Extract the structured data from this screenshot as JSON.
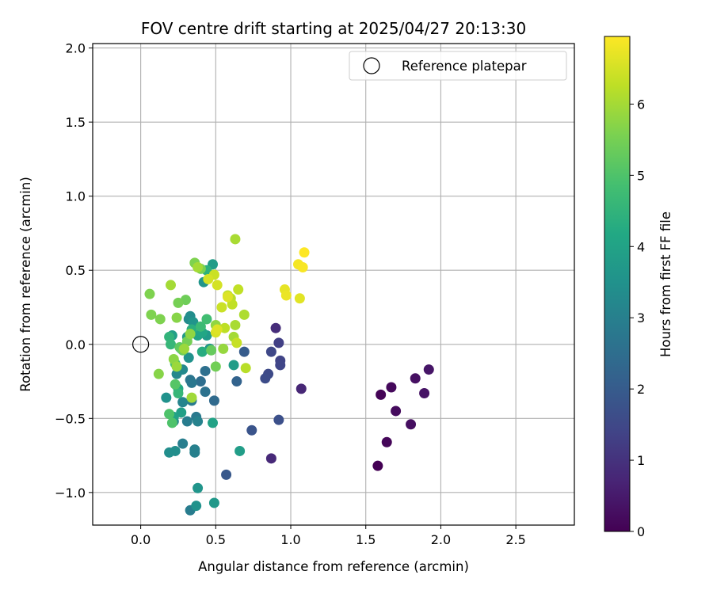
{
  "chart_data": {
    "type": "scatter",
    "title": "FOV centre drift starting at 2025/04/27 20:13:30",
    "xlabel": "Angular distance from reference (arcmin)",
    "ylabel": "Rotation from reference (arcmin)",
    "xlim": [
      -0.32,
      2.89
    ],
    "ylim": [
      -1.22,
      2.03
    ],
    "xticks": [
      "0.0",
      "0.5",
      "1.0",
      "1.5",
      "2.0",
      "2.5"
    ],
    "yticks": [
      "−1.0",
      "−0.5",
      "0.0",
      "0.5",
      "1.0",
      "1.5",
      "2.0"
    ],
    "grid": true,
    "legend": {
      "position": "top-right",
      "entries": [
        "Reference platepar"
      ]
    },
    "reference_point": {
      "x": 0.0,
      "y": 0.0
    },
    "colorbar": {
      "label": "Hours from first FF file",
      "colormap": "viridis",
      "range": [
        0,
        6.95
      ],
      "ticks": [
        "0",
        "1",
        "2",
        "3",
        "4",
        "5",
        "6"
      ]
    },
    "points": [
      [
        1.58,
        -0.82,
        0.0
      ],
      [
        1.6,
        -0.34,
        0.05
      ],
      [
        1.64,
        -0.66,
        0.1
      ],
      [
        1.67,
        -0.29,
        0.15
      ],
      [
        1.7,
        -0.45,
        0.2
      ],
      [
        1.8,
        -0.54,
        0.25
      ],
      [
        1.83,
        -0.23,
        0.3
      ],
      [
        1.89,
        -0.33,
        0.35
      ],
      [
        1.92,
        -0.17,
        0.4
      ],
      [
        1.07,
        -0.3,
        0.75
      ],
      [
        0.87,
        -0.77,
        0.8
      ],
      [
        0.9,
        0.11,
        0.9
      ],
      [
        0.92,
        0.01,
        1.3
      ],
      [
        0.93,
        -0.11,
        1.4
      ],
      [
        0.93,
        -0.14,
        1.45
      ],
      [
        0.87,
        -0.05,
        1.5
      ],
      [
        0.85,
        -0.2,
        1.55
      ],
      [
        0.83,
        -0.23,
        1.6
      ],
      [
        0.92,
        -0.51,
        1.7
      ],
      [
        0.74,
        -0.58,
        1.8
      ],
      [
        0.57,
        -0.88,
        1.9
      ],
      [
        0.69,
        -0.05,
        2.0
      ],
      [
        0.64,
        -0.25,
        2.2
      ],
      [
        0.49,
        -0.38,
        2.4
      ],
      [
        0.4,
        -0.25,
        2.5
      ],
      [
        0.43,
        -0.18,
        2.55
      ],
      [
        0.43,
        -0.32,
        2.6
      ],
      [
        0.33,
        -0.24,
        2.7
      ],
      [
        0.34,
        -0.26,
        2.75
      ],
      [
        0.37,
        -0.49,
        2.8
      ],
      [
        0.34,
        -0.38,
        2.85
      ],
      [
        0.31,
        -0.52,
        2.9
      ],
      [
        0.33,
        -1.12,
        2.9
      ],
      [
        0.28,
        -0.67,
        2.95
      ],
      [
        0.36,
        -0.71,
        3.0
      ],
      [
        0.36,
        -0.73,
        3.0
      ],
      [
        0.38,
        -0.52,
        3.05
      ],
      [
        0.28,
        -0.39,
        3.1
      ],
      [
        0.22,
        -0.52,
        3.15
      ],
      [
        0.24,
        -0.2,
        3.2
      ],
      [
        0.28,
        -0.17,
        3.25
      ],
      [
        0.32,
        0.17,
        3.3
      ],
      [
        0.33,
        0.19,
        3.35
      ],
      [
        0.19,
        -0.73,
        3.4
      ],
      [
        0.23,
        -0.72,
        3.4
      ],
      [
        0.17,
        -0.36,
        3.5
      ],
      [
        0.37,
        -1.09,
        3.5
      ],
      [
        0.32,
        -0.09,
        3.5
      ],
      [
        0.38,
        -0.97,
        3.6
      ],
      [
        0.27,
        -0.03,
        3.6
      ],
      [
        0.35,
        0.15,
        3.6
      ],
      [
        0.42,
        0.42,
        3.6
      ],
      [
        0.49,
        -1.07,
        3.7
      ],
      [
        0.31,
        0.05,
        3.7
      ],
      [
        0.46,
        -0.03,
        3.7
      ],
      [
        0.44,
        0.06,
        3.75
      ],
      [
        0.48,
        0.54,
        3.8
      ],
      [
        0.62,
        -0.14,
        3.8
      ],
      [
        0.66,
        -0.72,
        3.85
      ],
      [
        0.27,
        -0.46,
        3.9
      ],
      [
        0.21,
        0.06,
        3.9
      ],
      [
        0.22,
        -0.49,
        4.0
      ],
      [
        0.48,
        -0.53,
        4.0
      ],
      [
        0.38,
        0.06,
        4.05
      ],
      [
        0.41,
        0.08,
        4.1
      ],
      [
        0.25,
        -0.3,
        4.2
      ],
      [
        0.41,
        -0.05,
        4.3
      ],
      [
        0.34,
        0.1,
        4.35
      ],
      [
        0.44,
        0.5,
        4.4
      ],
      [
        0.19,
        0.05,
        4.5
      ],
      [
        0.25,
        -0.33,
        4.6
      ],
      [
        0.2,
        -0.0,
        4.6
      ],
      [
        0.4,
        0.12,
        4.7
      ],
      [
        0.44,
        0.17,
        4.8
      ],
      [
        0.23,
        -0.13,
        4.9
      ],
      [
        0.19,
        -0.47,
        5.0
      ],
      [
        0.21,
        -0.53,
        5.0
      ],
      [
        0.23,
        -0.27,
        5.1
      ],
      [
        0.26,
        -0.02,
        5.2
      ],
      [
        0.47,
        -0.04,
        5.3
      ],
      [
        0.28,
        -0.04,
        5.4
      ],
      [
        0.3,
        0.3,
        5.4
      ],
      [
        0.5,
        -0.15,
        5.45
      ],
      [
        0.25,
        0.28,
        5.5
      ],
      [
        0.31,
        0.02,
        5.5
      ],
      [
        0.4,
        0.51,
        5.55
      ],
      [
        0.36,
        0.55,
        5.6
      ],
      [
        0.06,
        0.34,
        5.6
      ],
      [
        0.07,
        0.2,
        5.6
      ],
      [
        0.13,
        0.17,
        5.6
      ],
      [
        0.12,
        -0.2,
        5.7
      ],
      [
        0.24,
        0.18,
        5.7
      ],
      [
        0.22,
        -0.1,
        5.75
      ],
      [
        0.33,
        0.07,
        5.8
      ],
      [
        0.5,
        0.13,
        5.8
      ],
      [
        0.55,
        -0.03,
        5.85
      ],
      [
        0.24,
        -0.15,
        5.9
      ],
      [
        0.29,
        -0.03,
        5.9
      ],
      [
        0.34,
        -0.36,
        5.95
      ],
      [
        0.2,
        0.4,
        6.0
      ],
      [
        0.38,
        0.52,
        6.0
      ],
      [
        0.62,
        0.05,
        6.0
      ],
      [
        0.63,
        0.71,
        6.05
      ],
      [
        0.63,
        0.13,
        6.05
      ],
      [
        0.69,
        0.2,
        6.1
      ],
      [
        0.7,
        -0.16,
        6.2
      ],
      [
        0.6,
        0.31,
        6.2
      ],
      [
        0.56,
        0.11,
        6.25
      ],
      [
        0.61,
        0.27,
        6.3
      ],
      [
        0.58,
        0.33,
        6.3
      ],
      [
        0.65,
        0.37,
        6.3
      ],
      [
        0.64,
        0.01,
        6.35
      ],
      [
        0.49,
        0.47,
        6.4
      ],
      [
        0.54,
        0.25,
        6.4
      ],
      [
        0.45,
        0.44,
        6.5
      ],
      [
        0.51,
        0.4,
        6.5
      ],
      [
        0.5,
        0.08,
        6.55
      ],
      [
        0.51,
        0.1,
        6.6
      ],
      [
        0.58,
        0.32,
        6.6
      ],
      [
        1.06,
        0.31,
        6.65
      ],
      [
        0.96,
        0.37,
        6.7
      ],
      [
        0.97,
        0.33,
        6.75
      ],
      [
        1.05,
        0.54,
        6.85
      ],
      [
        1.08,
        0.52,
        6.9
      ],
      [
        1.09,
        0.62,
        6.95
      ]
    ]
  }
}
